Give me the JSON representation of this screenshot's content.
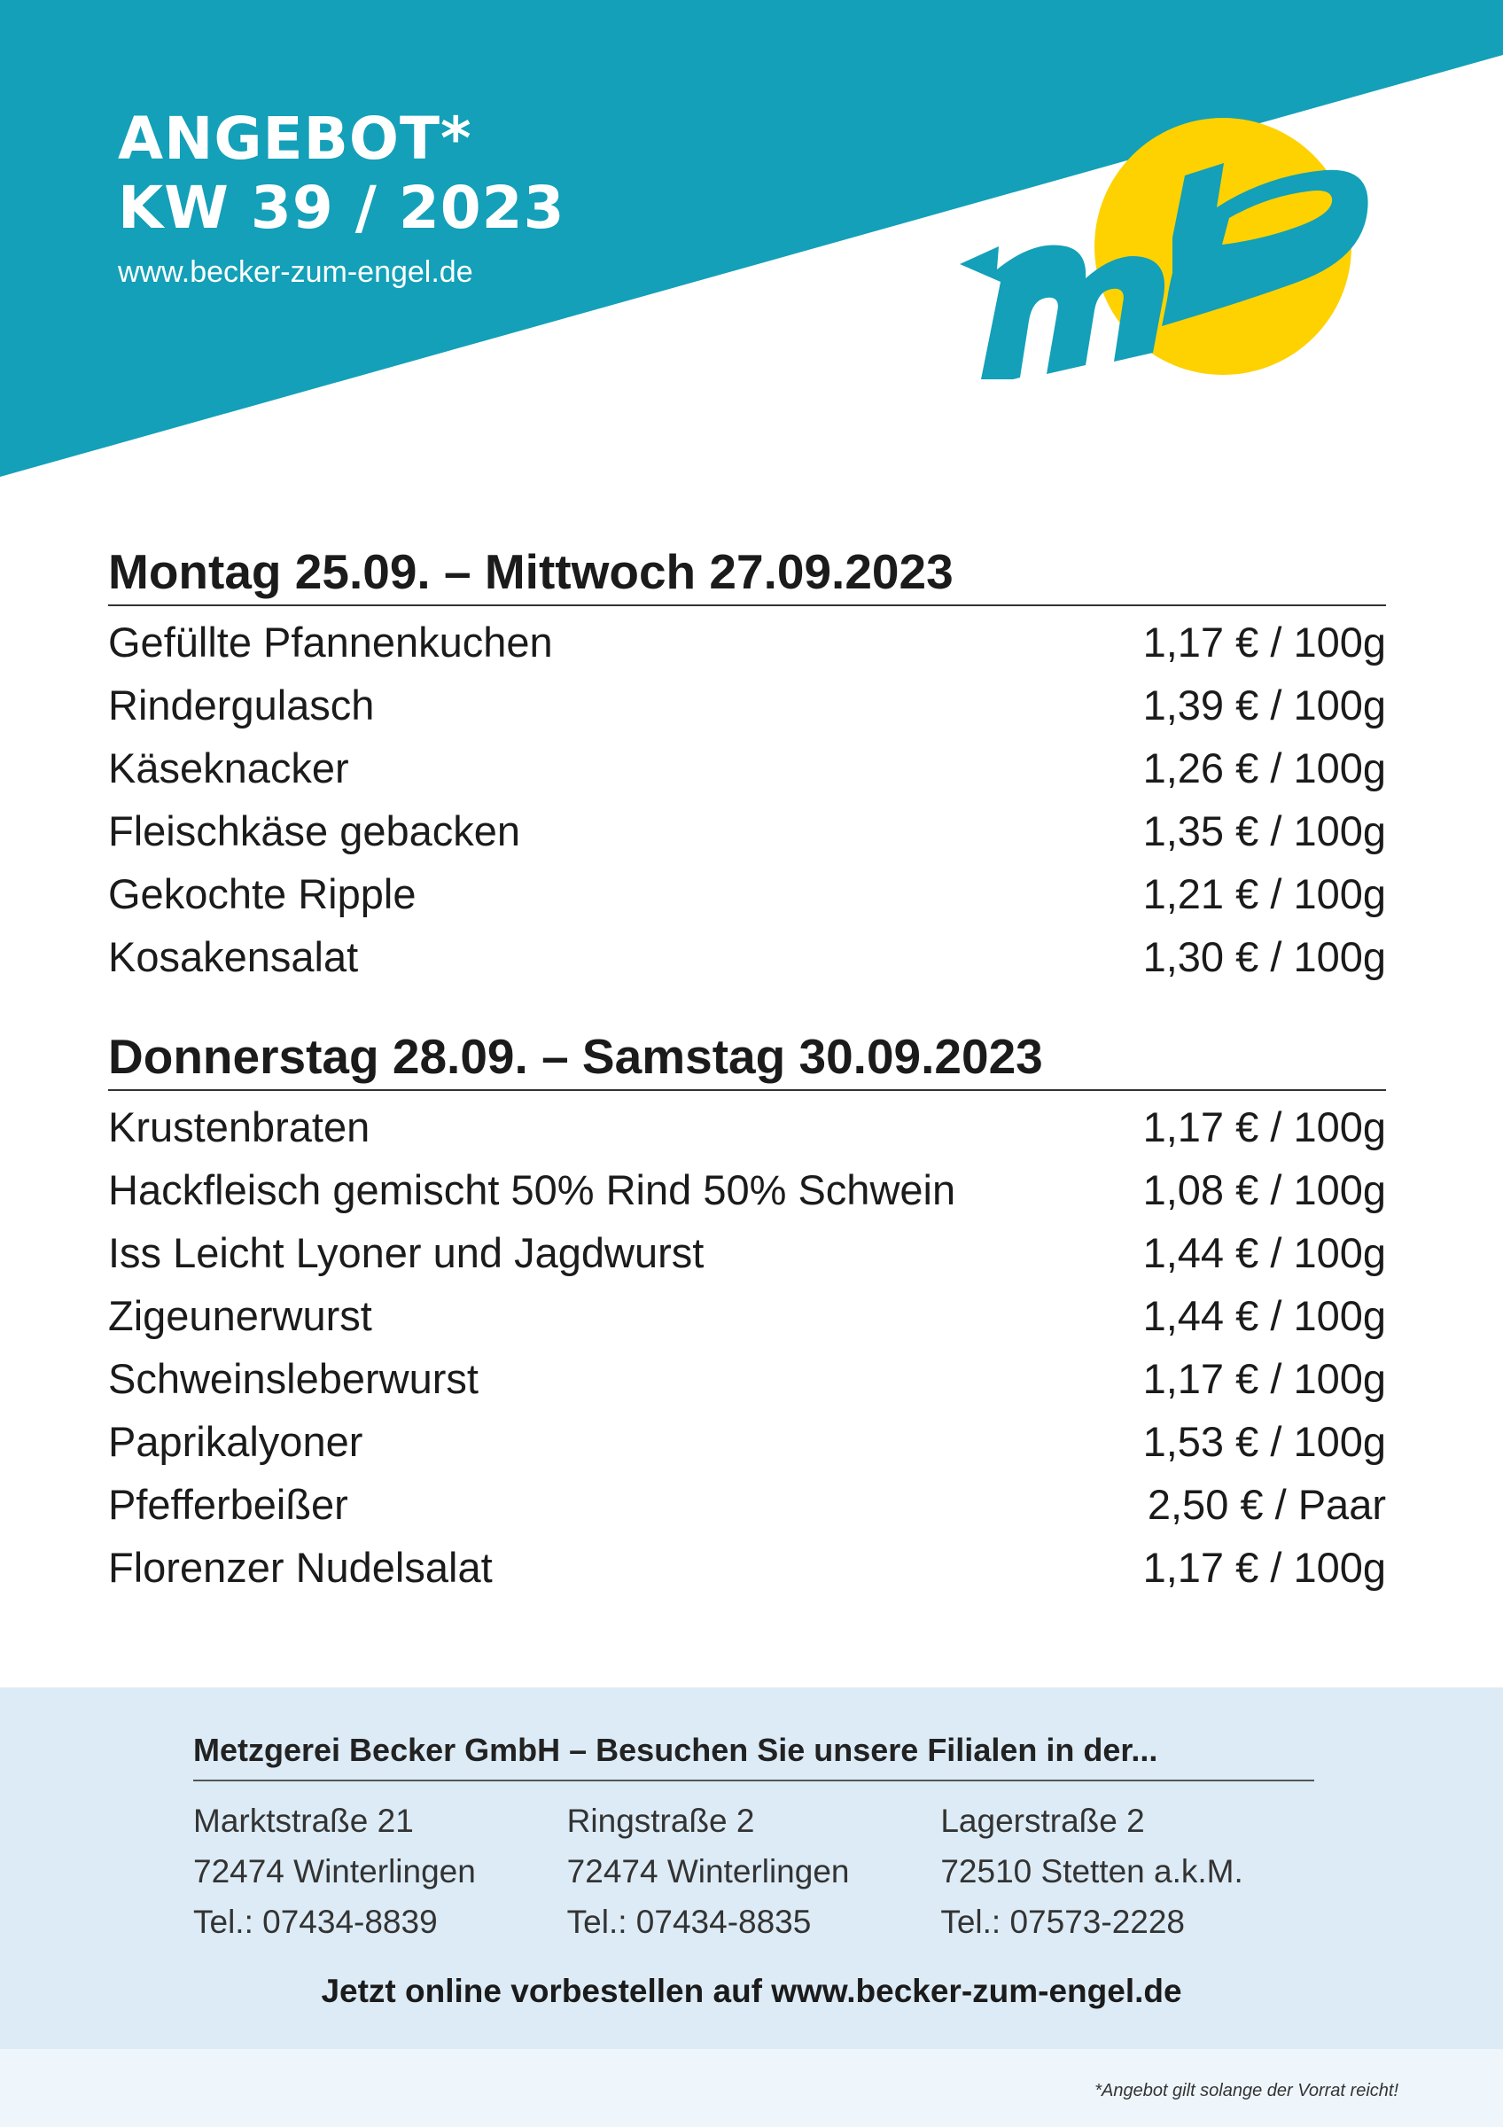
{
  "header": {
    "title_line1": "ANGEBOT*",
    "title_line2": "KW 39 / 2023",
    "url": "www.becker-zum-engel.de",
    "logo_text": "mb",
    "colors": {
      "band": "#13a0b8",
      "logo_circle": "#fdd200",
      "logo_letters": "#13a0b8"
    }
  },
  "sections": [
    {
      "title": "Montag 25.09. – Mittwoch 27.09.2023",
      "items": [
        {
          "name": "Gefüllte Pfannenkuchen",
          "price": "1,17 € / 100g"
        },
        {
          "name": "Rindergulasch",
          "price": "1,39 € / 100g"
        },
        {
          "name": "Käseknacker",
          "price": "1,26 € / 100g"
        },
        {
          "name": "Fleischkäse gebacken",
          "price": "1,35 € / 100g"
        },
        {
          "name": "Gekochte Ripple",
          "price": "1,21 € / 100g"
        },
        {
          "name": "Kosakensalat",
          "price": "1,30 € / 100g"
        }
      ]
    },
    {
      "title": "Donnerstag 28.09. – Samstag 30.09.2023",
      "items": [
        {
          "name": "Krustenbraten",
          "price": "1,17 € / 100g"
        },
        {
          "name": "Hackfleisch gemischt 50% Rind 50% Schwein",
          "price": "1,08 € / 100g"
        },
        {
          "name": "Iss Leicht Lyoner und Jagdwurst",
          "price": "1,44 € / 100g"
        },
        {
          "name": "Zigeunerwurst",
          "price": "1,44 € / 100g"
        },
        {
          "name": "Schweinsleberwurst",
          "price": "1,17 € / 100g"
        },
        {
          "name": "Paprikalyoner",
          "price": "1,53 € / 100g"
        },
        {
          "name": "Pfefferbeißer",
          "price": "2,50 € / Paar"
        },
        {
          "name": "Florenzer Nudelsalat",
          "price": "1,17 € / 100g"
        }
      ]
    }
  ],
  "footer": {
    "heading": "Metzgerei Becker GmbH – Besuchen Sie unsere Filialen in der...",
    "branches": [
      {
        "street": "Marktstraße 21",
        "city": "72474 Winterlingen",
        "phone": "Tel.: 07434-8839"
      },
      {
        "street": "Ringstraße 2",
        "city": "72474 Winterlingen",
        "phone": "Tel.: 07434-8835"
      },
      {
        "street": "Lagerstraße 2",
        "city": "72510 Stetten a.k.M.",
        "phone": "Tel.: 07573-2228"
      }
    ],
    "cta": "Jetzt online vorbestellen auf www.becker-zum-engel.de",
    "disclaimer": "*Angebot gilt solange der Vorrat reicht!"
  }
}
